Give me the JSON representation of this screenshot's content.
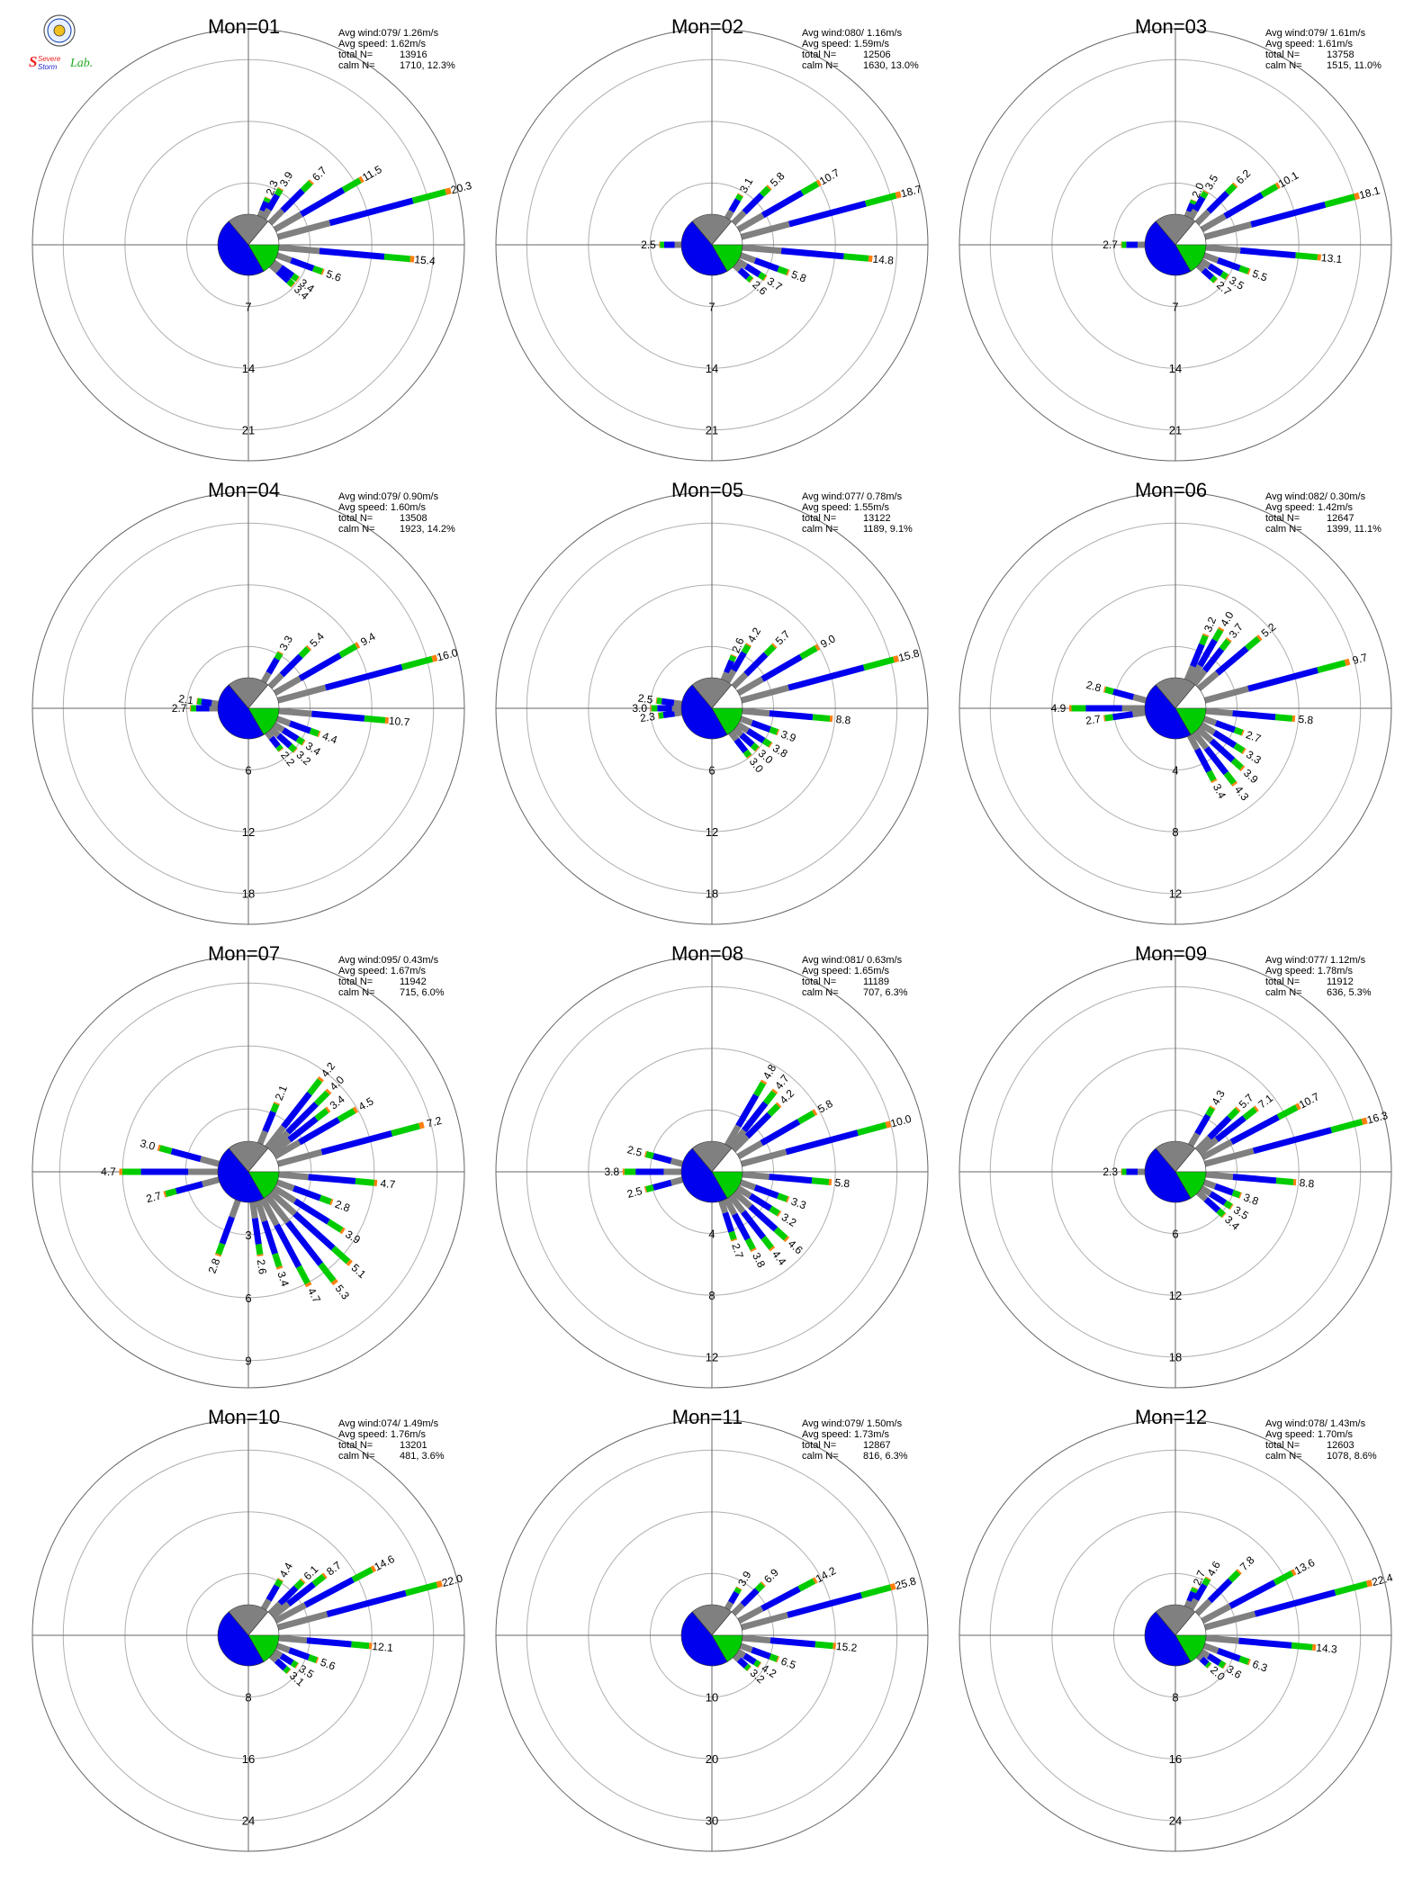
{
  "logo": {
    "text_part1": "Severe",
    "text_part2": "Storm",
    "text_part3": "Lab."
  },
  "colors": {
    "grey": "#808080",
    "blue": "#0000ee",
    "green": "#00cc00",
    "orange": "#ff7f0e",
    "red": "#ee0000",
    "ring": "#b0b0b0",
    "axis": "#666666"
  },
  "chart_data": [
    {
      "type": "wind-rose",
      "title": "Mon=01",
      "stats": {
        "avg_wind": "Avg wind:079/ 1.26m/s",
        "avg_speed": "Avg speed: 1.62m/s",
        "total_label": "total N=",
        "total_value": "13916",
        "calm_label": "calm N=",
        "calm_value": "1710,  12.3%"
      },
      "rings": [
        7,
        14,
        21
      ],
      "max": 24.5,
      "labeled": [
        {
          "dir": 22.5,
          "pct": 2.3
        },
        {
          "dir": 30,
          "pct": 3.9
        },
        {
          "dir": 45,
          "pct": 6.7
        },
        {
          "dir": 60,
          "pct": 11.5
        },
        {
          "dir": 75,
          "pct": 20.3
        },
        {
          "dir": 95,
          "pct": 15.4
        },
        {
          "dir": 110,
          "pct": 5.6
        },
        {
          "dir": 125,
          "pct": 3.4
        },
        {
          "dir": 132,
          "pct": 3.4
        }
      ]
    },
    {
      "type": "wind-rose",
      "title": "Mon=02",
      "stats": {
        "avg_wind": "Avg wind:080/ 1.16m/s",
        "avg_speed": "Avg speed: 1.59m/s",
        "total_label": "total N=",
        "total_value": "12506",
        "calm_label": "calm N=",
        "calm_value": "1630,  13.0%"
      },
      "rings": [
        7,
        14,
        21
      ],
      "max": 24.5,
      "labeled": [
        {
          "dir": 30,
          "pct": 3.1
        },
        {
          "dir": 45,
          "pct": 5.8
        },
        {
          "dir": 60,
          "pct": 10.7
        },
        {
          "dir": 75,
          "pct": 18.7
        },
        {
          "dir": 95,
          "pct": 14.8
        },
        {
          "dir": 110,
          "pct": 5.8
        },
        {
          "dir": 122,
          "pct": 3.7
        },
        {
          "dir": 132,
          "pct": 2.6
        },
        {
          "dir": 270,
          "pct": 2.5
        }
      ]
    },
    {
      "type": "wind-rose",
      "title": "Mon=03",
      "stats": {
        "avg_wind": "Avg wind:079/ 1.61m/s",
        "avg_speed": "Avg speed: 1.61m/s",
        "total_label": "total N=",
        "total_value": "13758",
        "calm_label": "calm N=",
        "calm_value": "1515,  11.0%"
      },
      "rings": [
        7,
        14,
        21
      ],
      "max": 24.5,
      "labeled": [
        {
          "dir": 22.5,
          "pct": 2.0
        },
        {
          "dir": 30,
          "pct": 3.5
        },
        {
          "dir": 45,
          "pct": 6.2
        },
        {
          "dir": 60,
          "pct": 10.1
        },
        {
          "dir": 75,
          "pct": 18.1
        },
        {
          "dir": 95,
          "pct": 13.1
        },
        {
          "dir": 110,
          "pct": 5.5
        },
        {
          "dir": 122,
          "pct": 3.5
        },
        {
          "dir": 132,
          "pct": 2.7
        },
        {
          "dir": 270,
          "pct": 2.7
        }
      ]
    },
    {
      "type": "wind-rose",
      "title": "Mon=04",
      "stats": {
        "avg_wind": "Avg wind:079/ 0.90m/s",
        "avg_speed": "Avg speed: 1.60m/s",
        "total_label": "total N=",
        "total_value": "13508",
        "calm_label": "calm N=",
        "calm_value": "1923,  14.2%"
      },
      "rings": [
        6,
        12,
        18
      ],
      "max": 21,
      "labeled": [
        {
          "dir": 30,
          "pct": 3.3
        },
        {
          "dir": 45,
          "pct": 5.4
        },
        {
          "dir": 60,
          "pct": 9.4
        },
        {
          "dir": 75,
          "pct": 16.0
        },
        {
          "dir": 95,
          "pct": 10.7
        },
        {
          "dir": 110,
          "pct": 4.4
        },
        {
          "dir": 122,
          "pct": 3.4
        },
        {
          "dir": 132,
          "pct": 3.2
        },
        {
          "dir": 142,
          "pct": 2.2
        },
        {
          "dir": 270,
          "pct": 2.7
        },
        {
          "dir": 278,
          "pct": 2.1
        }
      ]
    },
    {
      "type": "wind-rose",
      "title": "Mon=05",
      "stats": {
        "avg_wind": "Avg wind:077/ 0.78m/s",
        "avg_speed": "Avg speed: 1.55m/s",
        "total_label": "total N=",
        "total_value": "13122",
        "calm_label": "calm N=",
        "calm_value": "1189,   9.1%"
      },
      "rings": [
        6,
        12,
        18
      ],
      "max": 21,
      "labeled": [
        {
          "dir": 22.5,
          "pct": 2.6
        },
        {
          "dir": 30,
          "pct": 4.2
        },
        {
          "dir": 45,
          "pct": 5.7
        },
        {
          "dir": 60,
          "pct": 9.0
        },
        {
          "dir": 75,
          "pct": 15.8
        },
        {
          "dir": 95,
          "pct": 8.8
        },
        {
          "dir": 110,
          "pct": 3.9
        },
        {
          "dir": 122,
          "pct": 3.8
        },
        {
          "dir": 132,
          "pct": 3.0
        },
        {
          "dir": 142,
          "pct": 3.0
        },
        {
          "dir": 262,
          "pct": 2.3
        },
        {
          "dir": 270,
          "pct": 3.0
        },
        {
          "dir": 278,
          "pct": 2.5
        }
      ]
    },
    {
      "type": "wind-rose",
      "title": "Mon=06",
      "stats": {
        "avg_wind": "Avg wind:082/ 0.30m/s",
        "avg_speed": "Avg speed: 1.42m/s",
        "total_label": "total N=",
        "total_value": "12647",
        "calm_label": "calm N=",
        "calm_value": "1399,  11.1%"
      },
      "rings": [
        4,
        8,
        12
      ],
      "max": 14,
      "labeled": [
        {
          "dir": 22.5,
          "pct": 3.2
        },
        {
          "dir": 30,
          "pct": 4.0
        },
        {
          "dir": 38,
          "pct": 3.7
        },
        {
          "dir": 50,
          "pct": 5.2
        },
        {
          "dir": 75,
          "pct": 9.7
        },
        {
          "dir": 95,
          "pct": 5.8
        },
        {
          "dir": 110,
          "pct": 2.7
        },
        {
          "dir": 122,
          "pct": 3.3
        },
        {
          "dir": 132,
          "pct": 3.9
        },
        {
          "dir": 142,
          "pct": 4.3
        },
        {
          "dir": 152,
          "pct": 3.4
        },
        {
          "dir": 262,
          "pct": 2.7
        },
        {
          "dir": 270,
          "pct": 4.9
        },
        {
          "dir": 285,
          "pct": 2.8
        }
      ]
    },
    {
      "type": "wind-rose",
      "title": "Mon=07",
      "stats": {
        "avg_wind": "Avg wind:095/ 0.43m/s",
        "avg_speed": "Avg speed: 1.67m/s",
        "total_label": "total N=",
        "total_value": "11942",
        "calm_label": "calm N=",
        "calm_value": "715,   6.0%"
      },
      "rings": [
        3,
        6,
        9
      ],
      "max": 10.3,
      "labeled": [
        {
          "dir": 22.5,
          "pct": 2.1
        },
        {
          "dir": 38,
          "pct": 4.2
        },
        {
          "dir": 45,
          "pct": 4.0
        },
        {
          "dir": 52,
          "pct": 3.4
        },
        {
          "dir": 60,
          "pct": 4.5
        },
        {
          "dir": 75,
          "pct": 7.2
        },
        {
          "dir": 95,
          "pct": 4.7
        },
        {
          "dir": 110,
          "pct": 2.8
        },
        {
          "dir": 122,
          "pct": 3.9
        },
        {
          "dir": 132,
          "pct": 5.1
        },
        {
          "dir": 142,
          "pct": 5.3
        },
        {
          "dir": 152,
          "pct": 4.7
        },
        {
          "dir": 162,
          "pct": 3.4
        },
        {
          "dir": 172,
          "pct": 2.6
        },
        {
          "dir": 200,
          "pct": 2.8
        },
        {
          "dir": 255,
          "pct": 2.7
        },
        {
          "dir": 270,
          "pct": 4.7
        },
        {
          "dir": 285,
          "pct": 3.0
        }
      ]
    },
    {
      "type": "wind-rose",
      "title": "Mon=08",
      "stats": {
        "avg_wind": "Avg wind:081/ 0.63m/s",
        "avg_speed": "Avg speed: 1.65m/s",
        "total_label": "total N=",
        "total_value": "11189",
        "calm_label": "calm N=",
        "calm_value": "707,   6.3%"
      },
      "rings": [
        4,
        8,
        12
      ],
      "max": 14,
      "labeled": [
        {
          "dir": 30,
          "pct": 4.8
        },
        {
          "dir": 38,
          "pct": 4.7
        },
        {
          "dir": 45,
          "pct": 4.2
        },
        {
          "dir": 60,
          "pct": 5.8
        },
        {
          "dir": 75,
          "pct": 10.0
        },
        {
          "dir": 95,
          "pct": 5.8
        },
        {
          "dir": 110,
          "pct": 3.3
        },
        {
          "dir": 122,
          "pct": 3.2
        },
        {
          "dir": 132,
          "pct": 4.6
        },
        {
          "dir": 142,
          "pct": 4.4
        },
        {
          "dir": 152,
          "pct": 3.8
        },
        {
          "dir": 162,
          "pct": 2.7
        },
        {
          "dir": 255,
          "pct": 2.5
        },
        {
          "dir": 270,
          "pct": 3.8
        },
        {
          "dir": 285,
          "pct": 2.5
        }
      ]
    },
    {
      "type": "wind-rose",
      "title": "Mon=09",
      "stats": {
        "avg_wind": "Avg wind:077/ 1.12m/s",
        "avg_speed": "Avg speed: 1.78m/s",
        "total_label": "total N=",
        "total_value": "11912",
        "calm_label": "calm N=",
        "calm_value": "636,   5.3%"
      },
      "rings": [
        6,
        12,
        18
      ],
      "max": 21,
      "labeled": [
        {
          "dir": 30,
          "pct": 4.3
        },
        {
          "dir": 45,
          "pct": 5.7
        },
        {
          "dir": 52,
          "pct": 7.1
        },
        {
          "dir": 62,
          "pct": 10.7
        },
        {
          "dir": 75,
          "pct": 16.3
        },
        {
          "dir": 95,
          "pct": 8.8
        },
        {
          "dir": 110,
          "pct": 3.8
        },
        {
          "dir": 122,
          "pct": 3.5
        },
        {
          "dir": 132,
          "pct": 3.4
        },
        {
          "dir": 270,
          "pct": 2.3
        }
      ]
    },
    {
      "type": "wind-rose",
      "title": "Mon=10",
      "stats": {
        "avg_wind": "Avg wind:074/ 1.49m/s",
        "avg_speed": "Avg speed: 1.76m/s",
        "total_label": "total N=",
        "total_value": "13201",
        "calm_label": "calm N=",
        "calm_value": "481,   3.6%"
      },
      "rings": [
        8,
        16,
        24
      ],
      "max": 28,
      "labeled": [
        {
          "dir": 30,
          "pct": 4.4
        },
        {
          "dir": 45,
          "pct": 6.1
        },
        {
          "dir": 52,
          "pct": 8.7
        },
        {
          "dir": 62,
          "pct": 14.6
        },
        {
          "dir": 75,
          "pct": 22.0
        },
        {
          "dir": 95,
          "pct": 12.1
        },
        {
          "dir": 110,
          "pct": 5.6
        },
        {
          "dir": 122,
          "pct": 3.5
        },
        {
          "dir": 132,
          "pct": 3.1
        }
      ]
    },
    {
      "type": "wind-rose",
      "title": "Mon=11",
      "stats": {
        "avg_wind": "Avg wind:079/ 1.50m/s",
        "avg_speed": "Avg speed: 1.73m/s",
        "total_label": "total N=",
        "total_value": "12867",
        "calm_label": "calm N=",
        "calm_value": "816,   6.3%"
      },
      "rings": [
        10,
        20,
        30
      ],
      "max": 35,
      "labeled": [
        {
          "dir": 30,
          "pct": 3.9
        },
        {
          "dir": 45,
          "pct": 6.9
        },
        {
          "dir": 62,
          "pct": 14.2
        },
        {
          "dir": 75,
          "pct": 25.8
        },
        {
          "dir": 95,
          "pct": 15.2
        },
        {
          "dir": 110,
          "pct": 6.5
        },
        {
          "dir": 122,
          "pct": 4.2
        },
        {
          "dir": 132,
          "pct": 3.2
        }
      ]
    },
    {
      "type": "wind-rose",
      "title": "Mon=12",
      "stats": {
        "avg_wind": "Avg wind:078/ 1.43m/s",
        "avg_speed": "Avg speed: 1.70m/s",
        "total_label": "total N=",
        "total_value": "12603",
        "calm_label": "calm N=",
        "calm_value": "1078,   8.6%"
      },
      "rings": [
        8,
        16,
        24
      ],
      "max": 28,
      "labeled": [
        {
          "dir": 22.5,
          "pct": 2.7
        },
        {
          "dir": 30,
          "pct": 4.6
        },
        {
          "dir": 45,
          "pct": 7.8
        },
        {
          "dir": 62,
          "pct": 13.6
        },
        {
          "dir": 75,
          "pct": 22.4
        },
        {
          "dir": 95,
          "pct": 14.3
        },
        {
          "dir": 110,
          "pct": 6.3
        },
        {
          "dir": 122,
          "pct": 3.6
        },
        {
          "dir": 132,
          "pct": 2.0
        }
      ]
    }
  ]
}
